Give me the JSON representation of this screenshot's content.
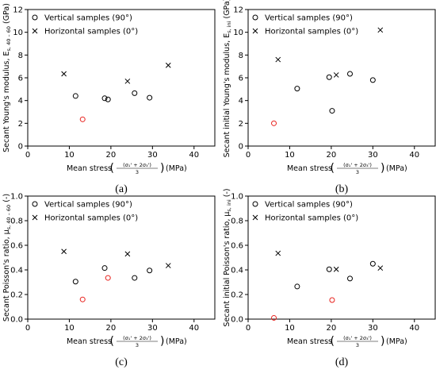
{
  "chart_data": [
    {
      "type": "scatter",
      "panel_label": "(a)",
      "xlabel": "Mean stress",
      "xlabel_fraction": {
        "numerator": "(σ₁' + 2σ₃')",
        "denominator": "3"
      },
      "xlabel_unit": "(MPa)",
      "ylabel": "Secant Young's modulus, E",
      "ylabel_subscript": "s, 40 – 60",
      "ylabel_unit": "(GPa)",
      "xlim": [
        0,
        45
      ],
      "ylim": [
        0,
        12
      ],
      "xticks": [
        0,
        10,
        20,
        30,
        40
      ],
      "yticks": [
        0,
        2,
        4,
        6,
        8,
        10,
        12
      ],
      "legend_position": "top-left",
      "series": [
        {
          "name": "Vertical samples (90°)",
          "marker": "circle",
          "color": "#000000",
          "x": [
            11.5,
            18.5,
            19.3,
            25.7,
            29.3
          ],
          "y": [
            4.4,
            4.2,
            4.1,
            4.65,
            4.25
          ]
        },
        {
          "name": "Horizontal samples (0°)",
          "marker": "x",
          "color": "#000000",
          "x": [
            8.7,
            24.0,
            33.8
          ],
          "y": [
            6.35,
            5.7,
            7.1
          ]
        },
        {
          "name": "",
          "marker": "circle",
          "color": "#e8231e",
          "x": [
            13.2
          ],
          "y": [
            2.35
          ]
        }
      ]
    },
    {
      "type": "scatter",
      "panel_label": "(b)",
      "xlabel": "Mean stress",
      "xlabel_fraction": {
        "numerator": "(σ₁' + 2σ₃')",
        "denominator": "3"
      },
      "xlabel_unit": "(MPa)",
      "ylabel": "Secant initial Young's modulus, E",
      "ylabel_subscript": "s, ini",
      "ylabel_unit": "(GPa)",
      "xlim": [
        0,
        45
      ],
      "ylim": [
        0,
        12
      ],
      "xticks": [
        0,
        10,
        20,
        30,
        40
      ],
      "yticks": [
        0,
        2,
        4,
        6,
        8,
        10,
        12
      ],
      "legend_position": "top-left",
      "series": [
        {
          "name": "Vertical samples (90°)",
          "marker": "circle",
          "color": "#000000",
          "x": [
            11.8,
            19.5,
            20.2,
            24.5,
            30.0
          ],
          "y": [
            5.05,
            6.05,
            3.1,
            6.35,
            5.8
          ]
        },
        {
          "name": "Horizontal samples (0°)",
          "marker": "x",
          "color": "#000000",
          "x": [
            7.2,
            21.2,
            31.8
          ],
          "y": [
            7.6,
            6.25,
            10.2
          ]
        },
        {
          "name": "",
          "marker": "circle",
          "color": "#e8231e",
          "x": [
            6.2
          ],
          "y": [
            2.0
          ]
        }
      ]
    },
    {
      "type": "scatter",
      "panel_label": "(c)",
      "xlabel": "Mean stress",
      "xlabel_fraction": {
        "numerator": "(σ₁' + 2σ₃')",
        "denominator": "3"
      },
      "xlabel_unit": "(MPa)",
      "ylabel": "Secant Poisson's ratio, μ",
      "ylabel_subscript": "s, 40 – 60",
      "ylabel_unit": "(-)",
      "xlim": [
        0,
        45
      ],
      "ylim": [
        0,
        1.0
      ],
      "xticks": [
        0,
        10,
        20,
        30,
        40
      ],
      "yticks": [
        0.0,
        0.2,
        0.4,
        0.6,
        0.8,
        1.0
      ],
      "legend_position": "top-left",
      "series": [
        {
          "name": "Vertical samples (90°)",
          "marker": "circle",
          "color": "#000000",
          "x": [
            11.5,
            18.5,
            25.7,
            29.3
          ],
          "y": [
            0.305,
            0.415,
            0.335,
            0.395
          ]
        },
        {
          "name": "Horizontal samples (0°)",
          "marker": "x",
          "color": "#000000",
          "x": [
            8.7,
            24.0,
            33.8
          ],
          "y": [
            0.55,
            0.53,
            0.435
          ]
        },
        {
          "name": "",
          "marker": "circle",
          "color": "#e8231e",
          "x": [
            13.2,
            19.3
          ],
          "y": [
            0.16,
            0.335
          ]
        }
      ]
    },
    {
      "type": "scatter",
      "panel_label": "(d)",
      "xlabel": "Mean stress",
      "xlabel_fraction": {
        "numerator": "(σ₁' + 2σ₃')",
        "denominator": "3"
      },
      "xlabel_unit": "(MPa)",
      "ylabel": "Secant initial Poisson's ratio, μ",
      "ylabel_subscript": "s, ini",
      "ylabel_unit": "(-)",
      "xlim": [
        0,
        45
      ],
      "ylim": [
        0,
        1.0
      ],
      "xticks": [
        0,
        10,
        20,
        30,
        40
      ],
      "yticks": [
        0.0,
        0.2,
        0.4,
        0.6,
        0.8,
        1.0
      ],
      "legend_position": "top-left",
      "series": [
        {
          "name": "Vertical samples (90°)",
          "marker": "circle",
          "color": "#000000",
          "x": [
            11.8,
            19.5,
            24.5,
            30.0
          ],
          "y": [
            0.265,
            0.405,
            0.33,
            0.45
          ]
        },
        {
          "name": "Horizontal samples (0°)",
          "marker": "x",
          "color": "#000000",
          "x": [
            7.2,
            21.2,
            31.8
          ],
          "y": [
            0.535,
            0.405,
            0.415
          ]
        },
        {
          "name": "",
          "marker": "circle",
          "color": "#e8231e",
          "x": [
            6.2,
            20.2
          ],
          "y": [
            0.01,
            0.155
          ]
        }
      ]
    }
  ]
}
